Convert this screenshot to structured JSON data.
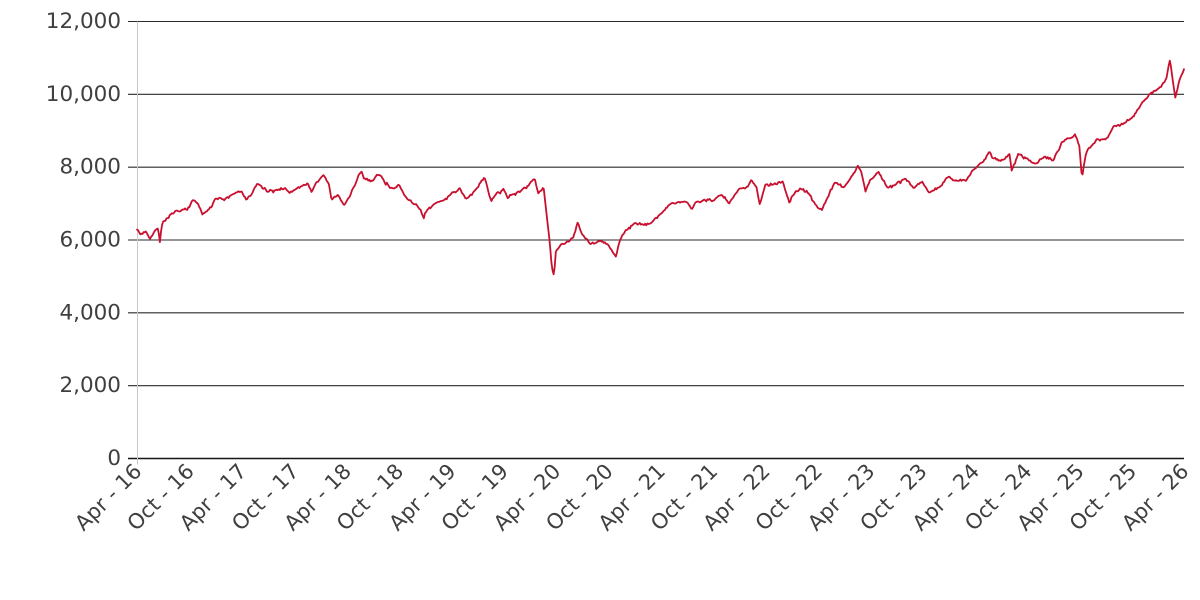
{
  "chart": {
    "background_color": "#ffffff",
    "line_color": "#C8102E",
    "grid_color": "#2b2b2b",
    "axis_line_color": "#161616",
    "plot_border_color": "#c9c9c9",
    "label_color": "#3f3f3f",
    "y_axis": {
      "min": 0,
      "max": 12000,
      "step": 2000,
      "tick_labels": [
        "0",
        "2,000",
        "4,000",
        "6,000",
        "8,000",
        "10,000",
        "12,000"
      ]
    },
    "x_axis": {
      "tick_labels": [
        "Apr - 16",
        "Oct - 16",
        "Apr - 17",
        "Oct - 17",
        "Apr - 18",
        "Oct - 18",
        "Apr - 19",
        "Oct - 19",
        "Apr - 20",
        "Oct - 20",
        "Apr - 21",
        "Oct - 21",
        "Apr - 22",
        "Oct - 22",
        "Apr - 23",
        "Oct - 23",
        "Apr - 24",
        "Oct - 24",
        "Apr - 25",
        "Oct - 25",
        "Apr - 26"
      ],
      "tick_interval_months": 6
    }
  },
  "chart_data": {
    "type": "line",
    "title": "",
    "xlabel": "",
    "ylabel": "",
    "x_unit": "months since Apr-2016 (0 = Apr-16, 120 = Apr-26)",
    "ylim": [
      0,
      12000
    ],
    "grid": "horizontal",
    "legend": "none",
    "series": [
      {
        "name": "series-1",
        "color": "#C8102E",
        "anchors": [
          [
            0,
            6300
          ],
          [
            0.4,
            6150
          ],
          [
            1,
            6242
          ],
          [
            1.5,
            6050
          ],
          [
            2,
            6231
          ],
          [
            2.45,
            6338
          ],
          [
            2.6,
            5890
          ],
          [
            2.8,
            6360
          ],
          [
            3,
            6504
          ],
          [
            4,
            6724
          ],
          [
            5,
            6782
          ],
          [
            6,
            6899
          ],
          [
            6.4,
            7097
          ],
          [
            7,
            7000
          ],
          [
            7.5,
            6694
          ],
          [
            8,
            6784
          ],
          [
            9,
            7143
          ],
          [
            10,
            7099
          ],
          [
            11,
            7263
          ],
          [
            12,
            7323
          ],
          [
            12.5,
            7114
          ],
          [
            13,
            7204
          ],
          [
            13.8,
            7547
          ],
          [
            14,
            7520
          ],
          [
            15,
            7313
          ],
          [
            16,
            7372
          ],
          [
            17,
            7431
          ],
          [
            17.5,
            7290
          ],
          [
            18,
            7373
          ],
          [
            19,
            7493
          ],
          [
            19.6,
            7560
          ],
          [
            20,
            7327
          ],
          [
            21,
            7688
          ],
          [
            21.4,
            7790
          ],
          [
            22,
            7534
          ],
          [
            22.3,
            7092
          ],
          [
            23,
            7232
          ],
          [
            23.8,
            6952
          ],
          [
            24,
            7057
          ],
          [
            25,
            7509
          ],
          [
            25.7,
            7903
          ],
          [
            26,
            7678
          ],
          [
            27,
            7637
          ],
          [
            27.5,
            7790
          ],
          [
            28,
            7749
          ],
          [
            29,
            7432
          ],
          [
            30,
            7510
          ],
          [
            30.6,
            7233
          ],
          [
            31,
            7128
          ],
          [
            32,
            6980
          ],
          [
            32.9,
            6585
          ],
          [
            33,
            6728
          ],
          [
            34,
            6969
          ],
          [
            35,
            7075
          ],
          [
            36,
            7279
          ],
          [
            37,
            7418
          ],
          [
            37.7,
            7130
          ],
          [
            38,
            7162
          ],
          [
            39,
            7426
          ],
          [
            39.8,
            7727
          ],
          [
            40,
            7587
          ],
          [
            40.6,
            7067
          ],
          [
            41,
            7207
          ],
          [
            42,
            7408
          ],
          [
            42.5,
            7143
          ],
          [
            43,
            7248
          ],
          [
            44,
            7347
          ],
          [
            45,
            7542
          ],
          [
            45.6,
            7675
          ],
          [
            46,
            7286
          ],
          [
            46.6,
            7457
          ],
          [
            47,
            6581
          ],
          [
            47.3,
            5960
          ],
          [
            47.55,
            5237
          ],
          [
            47.8,
            4994
          ],
          [
            48,
            5672
          ],
          [
            48.5,
            5850
          ],
          [
            49,
            5901
          ],
          [
            50,
            6077
          ],
          [
            50.5,
            6484
          ],
          [
            51,
            6170
          ],
          [
            52,
            5898
          ],
          [
            53,
            5964
          ],
          [
            54,
            5866
          ],
          [
            54.9,
            5525
          ],
          [
            55.3,
            5963
          ],
          [
            56,
            6266
          ],
          [
            57,
            6461
          ],
          [
            58,
            6407
          ],
          [
            59,
            6483
          ],
          [
            60,
            6714
          ],
          [
            61,
            6970
          ],
          [
            62,
            7023
          ],
          [
            63,
            7037
          ],
          [
            63.6,
            6844
          ],
          [
            64,
            7032
          ],
          [
            65,
            7120
          ],
          [
            66,
            7086
          ],
          [
            67,
            7238
          ],
          [
            67.9,
            6995
          ],
          [
            68,
            7059
          ],
          [
            69,
            7385
          ],
          [
            70,
            7464
          ],
          [
            70.4,
            7672
          ],
          [
            71,
            7458
          ],
          [
            71.4,
            6959
          ],
          [
            72,
            7516
          ],
          [
            73,
            7545
          ],
          [
            74,
            7608
          ],
          [
            74.8,
            6998
          ],
          [
            75,
            7169
          ],
          [
            76,
            7423
          ],
          [
            77,
            7284
          ],
          [
            78,
            6894
          ],
          [
            78.5,
            6826
          ],
          [
            79,
            7095
          ],
          [
            80,
            7573
          ],
          [
            81,
            7452
          ],
          [
            82,
            7772
          ],
          [
            82.6,
            8047
          ],
          [
            83,
            7876
          ],
          [
            83.5,
            7335
          ],
          [
            84,
            7632
          ],
          [
            85,
            7871
          ],
          [
            86,
            7446
          ],
          [
            87,
            7532
          ],
          [
            88,
            7699
          ],
          [
            89,
            7439
          ],
          [
            90,
            7608
          ],
          [
            90.8,
            7291
          ],
          [
            91,
            7322
          ],
          [
            92,
            7454
          ],
          [
            93,
            7733
          ],
          [
            94,
            7631
          ],
          [
            95,
            7630
          ],
          [
            96,
            7953
          ],
          [
            97,
            8144
          ],
          [
            97.7,
            8446
          ],
          [
            98,
            8275
          ],
          [
            99,
            8164
          ],
          [
            100,
            8368
          ],
          [
            100.25,
            7908
          ],
          [
            101,
            8377
          ],
          [
            102,
            8237
          ],
          [
            103,
            8110
          ],
          [
            104,
            8287
          ],
          [
            105,
            8173
          ],
          [
            106,
            8674
          ],
          [
            107,
            8810
          ],
          [
            107.5,
            8908
          ],
          [
            108,
            8583
          ],
          [
            108.3,
            7679
          ],
          [
            108.7,
            8300
          ],
          [
            109,
            8495
          ],
          [
            110,
            8772
          ],
          [
            111,
            8761
          ],
          [
            112,
            9133
          ],
          [
            113,
            9187
          ],
          [
            114,
            9350
          ],
          [
            115,
            9700
          ],
          [
            116,
            10000
          ],
          [
            117,
            10150
          ],
          [
            118,
            10450
          ],
          [
            118.4,
            10950
          ],
          [
            119,
            9900
          ],
          [
            119.5,
            10400
          ],
          [
            120,
            10700
          ]
        ]
      }
    ],
    "noise": {
      "seed": 7,
      "phi": 0.5,
      "sigma": 46,
      "spike": 26,
      "points_per_month": 8,
      "min_scale": 0.2,
      "scale_gain": 1.6
    }
  }
}
